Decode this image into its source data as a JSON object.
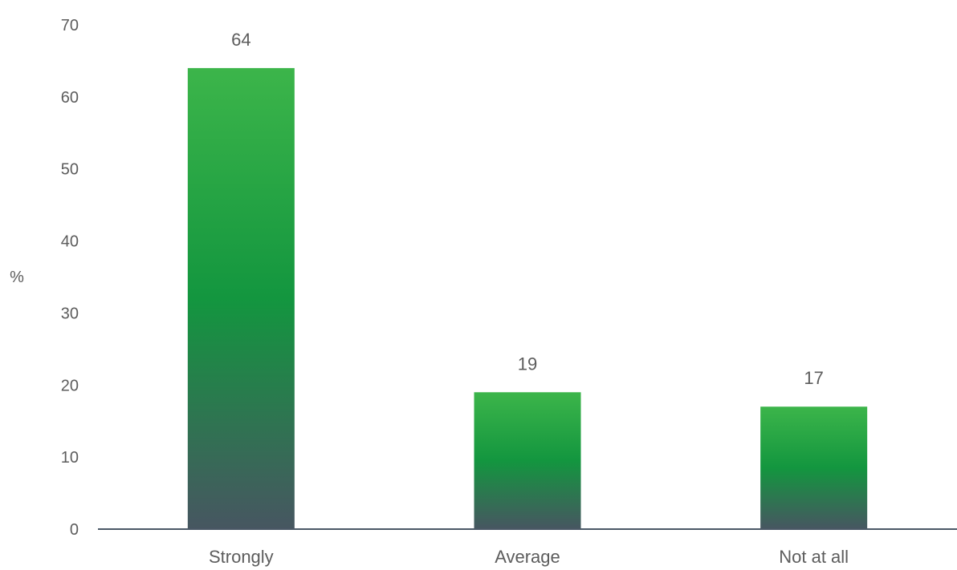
{
  "chart_data": {
    "type": "bar",
    "categories": [
      "Strongly",
      "Average",
      "Not at all"
    ],
    "values": [
      64,
      19,
      17
    ],
    "ylabel": "%",
    "ylim": [
      0,
      70
    ],
    "yticks": [
      0,
      10,
      20,
      30,
      40,
      50,
      60,
      70
    ],
    "grid": false,
    "data_labels": true,
    "colors": {
      "bar_top": "#3cb54a",
      "bar_mid": "#13963f",
      "bar_bottom": "#475661",
      "axis": "#4a5866"
    }
  }
}
